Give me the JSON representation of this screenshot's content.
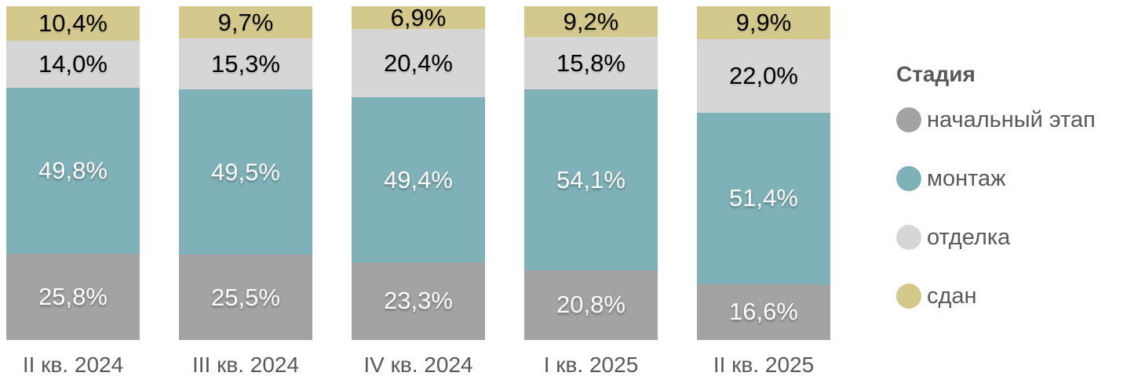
{
  "chart_data": {
    "type": "bar",
    "subtype": "stacked-100-percent",
    "orientation": "vertical",
    "title": "",
    "xlabel": "",
    "ylabel": "",
    "ylim": [
      0,
      100
    ],
    "grid": false,
    "axes_visible": false,
    "categories": [
      "II кв. 2024",
      "III кв. 2024",
      "IV кв. 2024",
      "I кв. 2025",
      "II кв. 2025"
    ],
    "series": [
      {
        "name": "начальный этап",
        "color": "#a3a3a3",
        "label_color": "#ffffff",
        "values": [
          25.8,
          25.5,
          23.3,
          20.8,
          16.6
        ],
        "labels": [
          "25,8%",
          "25,5%",
          "23,3%",
          "20,8%",
          "16,6%"
        ]
      },
      {
        "name": "монтаж",
        "color": "#7fb2b8",
        "label_color": "#ffffff",
        "values": [
          49.8,
          49.5,
          49.4,
          54.1,
          51.4
        ],
        "labels": [
          "49,8%",
          "49,5%",
          "49,4%",
          "54,1%",
          "51,4%"
        ]
      },
      {
        "name": "отделка",
        "color": "#d6d6d6",
        "label_color": "#000000",
        "values": [
          14.0,
          15.3,
          20.4,
          15.8,
          22.0
        ],
        "labels": [
          "14,0%",
          "15,3%",
          "20,4%",
          "15,8%",
          "22,0%"
        ]
      },
      {
        "name": "сдан",
        "color": "#d4c98c",
        "label_color": "#000000",
        "values": [
          10.4,
          9.7,
          6.9,
          9.2,
          9.9
        ],
        "labels": [
          "10,4%",
          "9,7%",
          "6,9%",
          "9,2%",
          "9,9%"
        ]
      }
    ],
    "legend": {
      "title": "Стадия",
      "position": "right",
      "text_color": "#595959",
      "entries": [
        "начальный этап",
        "монтаж",
        "отделка",
        "сдан"
      ]
    },
    "axis_text_color": "#595959",
    "background_color": "#ffffff"
  }
}
